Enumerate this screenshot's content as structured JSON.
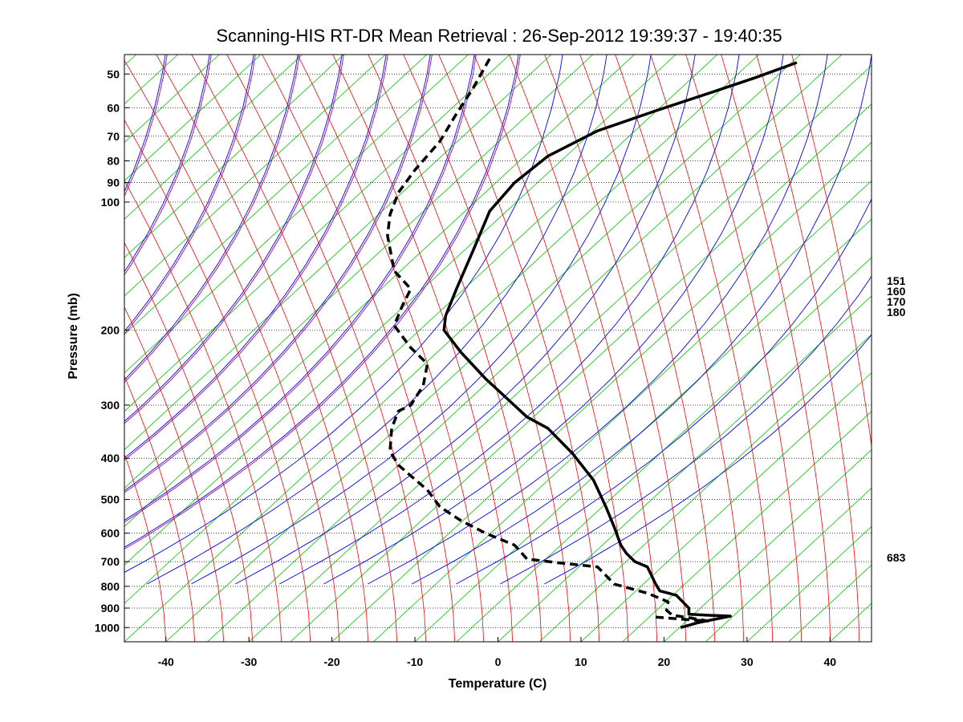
{
  "chart_data": {
    "type": "line",
    "title": "Scanning-HIS RT-DR Mean Retrieval : 26-Sep-2012 19:39:37 - 19:40:35",
    "xlabel": "Temperature (C)",
    "ylabel": "Pressure (mb)",
    "xlim": [
      -45,
      45
    ],
    "ylim": [
      1080,
      45
    ],
    "y_scale": "log",
    "y_reversed": true,
    "x_ticks": [
      "-40",
      "-30",
      "-20",
      "-10",
      "0",
      "10",
      "20",
      "30",
      "40"
    ],
    "y_ticks": [
      "50",
      "60",
      "70",
      "80",
      "90",
      "100",
      "200",
      "300",
      "400",
      "500",
      "600",
      "700",
      "800",
      "900",
      "1000"
    ],
    "grid": "horizontal-dotted",
    "right_markers": [
      "151",
      "160",
      "170",
      "180",
      "683"
    ],
    "background_lines": {
      "isotherms_color": "#00cc00",
      "dry_adiabats_color": "#0000ff",
      "moist_adiabats_color": "#ff0000",
      "mixing_ratio_color": "#aa00aa"
    },
    "series": [
      {
        "style": "solid",
        "color": "#000000",
        "points": [
          [
            22,
            1000
          ],
          [
            24,
            975
          ],
          [
            28,
            940
          ],
          [
            25,
            935
          ],
          [
            23,
            930
          ],
          [
            23,
            900
          ],
          [
            22.5,
            880
          ],
          [
            21.5,
            840
          ],
          [
            19.5,
            820
          ],
          [
            19,
            790
          ],
          [
            18,
            720
          ],
          [
            16.5,
            700
          ],
          [
            15.5,
            670
          ],
          [
            14.8,
            640
          ],
          [
            14,
            580
          ],
          [
            13,
            520
          ],
          [
            11.5,
            450
          ],
          [
            9,
            390
          ],
          [
            6,
            340
          ],
          [
            3.5,
            320
          ],
          [
            -1.5,
            260
          ],
          [
            -4.5,
            225
          ],
          [
            -6.5,
            200
          ],
          [
            -6.3,
            185
          ],
          [
            -5,
            160
          ],
          [
            -3,
            130
          ],
          [
            -1,
            105
          ],
          [
            2,
            90
          ],
          [
            6,
            78
          ],
          [
            12,
            68
          ],
          [
            19,
            61
          ],
          [
            26,
            55
          ],
          [
            31,
            51
          ],
          [
            36,
            47
          ]
        ]
      },
      {
        "style": "dashed",
        "color": "#000000",
        "points": [
          [
            19,
            945
          ],
          [
            22,
            955
          ],
          [
            23.5,
            960
          ],
          [
            25.3,
            965
          ],
          [
            23,
            948
          ],
          [
            21,
            935
          ],
          [
            20.3,
            910
          ],
          [
            20.5,
            870
          ],
          [
            18,
            830
          ],
          [
            14,
            790
          ],
          [
            12,
            720
          ],
          [
            7.5,
            705
          ],
          [
            3.5,
            690
          ],
          [
            2,
            640
          ],
          [
            -1.5,
            600
          ],
          [
            -4.5,
            560
          ],
          [
            -7,
            520
          ],
          [
            -8.5,
            475
          ],
          [
            -10.5,
            440
          ],
          [
            -12,
            415
          ],
          [
            -13,
            385
          ],
          [
            -12.8,
            340
          ],
          [
            -12,
            310
          ],
          [
            -10.5,
            300
          ],
          [
            -9,
            270
          ],
          [
            -8.5,
            240
          ],
          [
            -10.5,
            220
          ],
          [
            -12.5,
            195
          ],
          [
            -11.5,
            175
          ],
          [
            -10.5,
            160
          ],
          [
            -12.5,
            145
          ],
          [
            -13.3,
            120
          ],
          [
            -13,
            107
          ],
          [
            -12,
            95
          ],
          [
            -10,
            84
          ],
          [
            -7,
            72
          ],
          [
            -5,
            62
          ],
          [
            -3,
            54
          ],
          [
            -1,
            46
          ]
        ]
      }
    ]
  }
}
